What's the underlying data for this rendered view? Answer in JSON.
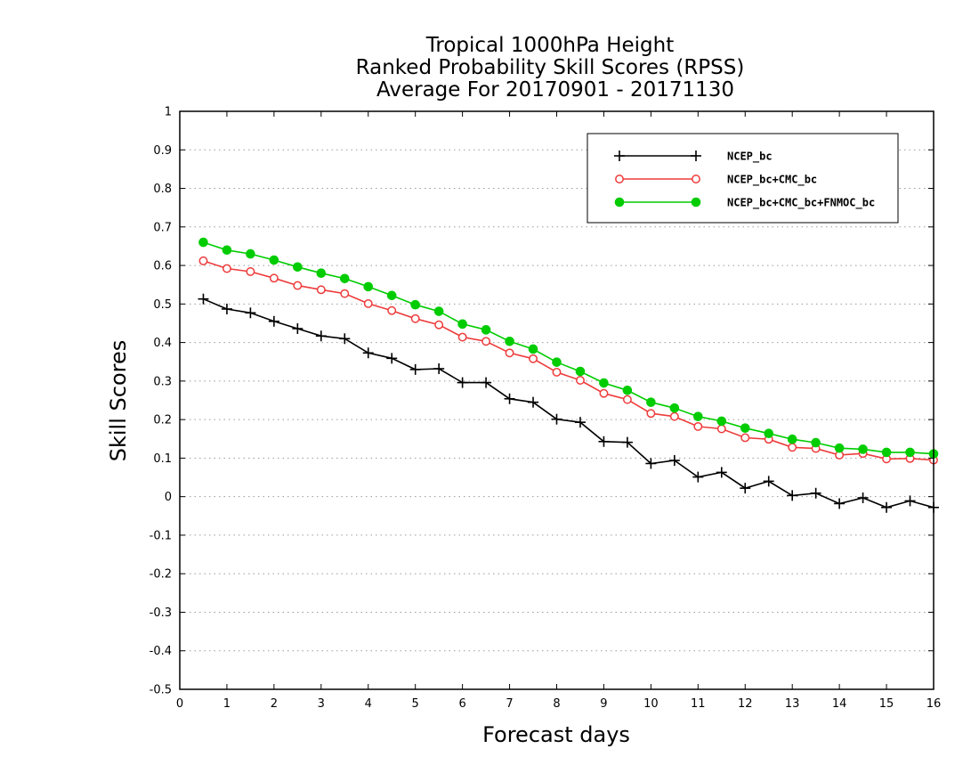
{
  "chart_data": {
    "type": "line",
    "title_lines": [
      "Tropical 1000hPa Height",
      "Ranked Probability Skill Scores (RPSS)",
      "Average For 20170901 - 20171130"
    ],
    "xlabel": "Forecast days",
    "ylabel": "Skill Scores",
    "xlim": [
      0,
      16
    ],
    "ylim": [
      -0.5,
      1
    ],
    "xticks": [
      "0",
      "1",
      "2",
      "3",
      "4",
      "5",
      "6",
      "7",
      "8",
      "9",
      "10",
      "11",
      "12",
      "13",
      "14",
      "15",
      "16"
    ],
    "yticks": [
      "1",
      "0.9",
      "0.8",
      "0.7",
      "0.6",
      "0.5",
      "0.4",
      "0.3",
      "0.2",
      "0.1",
      "0",
      "-0.1",
      "-0.2",
      "-0.3",
      "-0.4",
      "-0.5"
    ],
    "grid": "horizontal dotted",
    "legend_position": "top-right",
    "x": [
      0.5,
      1,
      1.5,
      2,
      2.5,
      3,
      3.5,
      4,
      4.5,
      5,
      5.5,
      6,
      6.5,
      7,
      7.5,
      8,
      8.5,
      9,
      9.5,
      10,
      10.5,
      11,
      11.5,
      12,
      12.5,
      13,
      13.5,
      14,
      14.5,
      15,
      15.5,
      16
    ],
    "series": [
      {
        "name": "NCEP_bc",
        "color": "#000000",
        "marker": "plus",
        "values": [
          0.513,
          0.487,
          0.477,
          0.455,
          0.436,
          0.417,
          0.41,
          0.373,
          0.359,
          0.33,
          0.332,
          0.296,
          0.296,
          0.254,
          0.245,
          0.201,
          0.193,
          0.143,
          0.141,
          0.086,
          0.094,
          0.051,
          0.063,
          0.022,
          0.04,
          0.003,
          0.009,
          -0.018,
          -0.003,
          -0.028,
          -0.011,
          -0.028
        ]
      },
      {
        "name": "NCEP_bc+CMC_bc",
        "color": "#ee3b3b",
        "marker": "open-circle",
        "values": [
          0.612,
          0.592,
          0.584,
          0.567,
          0.548,
          0.537,
          0.527,
          0.501,
          0.483,
          0.462,
          0.446,
          0.414,
          0.403,
          0.373,
          0.358,
          0.323,
          0.302,
          0.268,
          0.252,
          0.216,
          0.208,
          0.182,
          0.176,
          0.153,
          0.149,
          0.128,
          0.125,
          0.108,
          0.112,
          0.098,
          0.099,
          0.095
        ]
      },
      {
        "name": "NCEP_bc+CMC_bc+FNMOC_bc",
        "color": "#00cc00",
        "marker": "filled-circle",
        "values": [
          0.66,
          0.64,
          0.63,
          0.614,
          0.596,
          0.58,
          0.566,
          0.545,
          0.522,
          0.498,
          0.481,
          0.448,
          0.433,
          0.403,
          0.383,
          0.349,
          0.325,
          0.295,
          0.276,
          0.245,
          0.23,
          0.208,
          0.196,
          0.178,
          0.164,
          0.149,
          0.14,
          0.126,
          0.123,
          0.115,
          0.115,
          0.111
        ]
      }
    ]
  }
}
